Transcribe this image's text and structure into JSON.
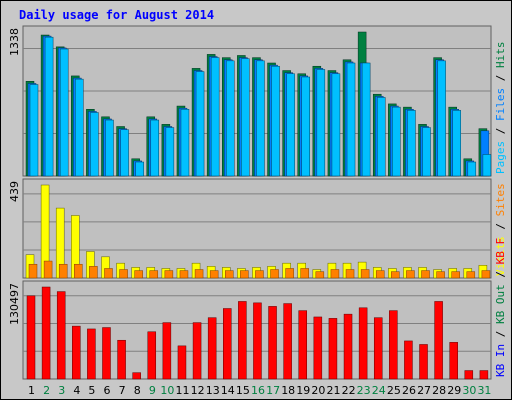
{
  "title": "Daily usage for August 2014",
  "colors": {
    "title": "#0000ff",
    "hits": "#008040",
    "files": "#0080ff",
    "files_light": "#00c0ff",
    "pages": "#00c0ff",
    "visits": "#ffff00",
    "sites": "#ff8000",
    "kbin": "#ff0000",
    "kbout": "#008040",
    "weekend_label": "#008040",
    "weekday_label": "#000000"
  },
  "chart_data": {
    "type": "bar",
    "days": [
      "1",
      "2",
      "3",
      "4",
      "5",
      "6",
      "7",
      "8",
      "9",
      "10",
      "11",
      "12",
      "13",
      "14",
      "15",
      "16",
      "17",
      "18",
      "19",
      "20",
      "21",
      "22",
      "23",
      "24",
      "25",
      "26",
      "27",
      "28",
      "29",
      "30",
      "31"
    ],
    "weekend_days": [
      "2",
      "3",
      "9",
      "10",
      "16",
      "17",
      "23",
      "24",
      "30",
      "31"
    ],
    "panels": [
      {
        "id": "top",
        "ymax_label": "1338",
        "ymax": 1338,
        "legend": [
          {
            "text": "Pages",
            "color": "#00c0ff"
          },
          {
            "text": " / ",
            "color": "#000000"
          },
          {
            "text": "Files",
            "color": "#0080ff"
          },
          {
            "text": " / ",
            "color": "#000000"
          },
          {
            "text": "Hits",
            "color": "#008040"
          }
        ],
        "series": [
          {
            "name": "Hits",
            "values": [
              880,
              1310,
              1200,
              930,
              620,
              550,
              460,
              160,
              550,
              480,
              650,
              1000,
              1130,
              1100,
              1120,
              1100,
              1050,
              980,
              950,
              1020,
              980,
              1080,
              1338,
              760,
              670,
              640,
              480,
              1100,
              640,
              160,
              440
            ]
          },
          {
            "name": "Files",
            "values": [
              860,
              1300,
              1190,
              910,
              600,
              530,
              440,
              140,
              530,
              460,
              630,
              980,
              1110,
              1080,
              1100,
              1080,
              1030,
              960,
              930,
              1000,
              960,
              1060,
              1050,
              740,
              650,
              620,
              460,
              1080,
              620,
              140,
              420
            ]
          },
          {
            "name": "Pages",
            "values": [
              850,
              1290,
              1180,
              900,
              590,
              520,
              430,
              130,
              520,
              450,
              620,
              970,
              1100,
              1070,
              1090,
              1070,
              1020,
              950,
              920,
              990,
              950,
              1050,
              1050,
              730,
              640,
              610,
              450,
              1070,
              610,
              130,
              200
            ]
          }
        ]
      },
      {
        "id": "middle",
        "ymax_label": "439",
        "ymax": 439,
        "legend": [
          {
            "text": "Visits",
            "color": "#ffff00"
          },
          {
            "text": " / ",
            "color": "#000000"
          },
          {
            "text": "Sites",
            "color": "#ff8000"
          }
        ],
        "series": [
          {
            "name": "Visits",
            "values": [
              110,
              439,
              330,
              295,
              125,
              100,
              70,
              50,
              50,
              45,
              45,
              70,
              55,
              50,
              45,
              50,
              55,
              70,
              70,
              40,
              70,
              70,
              75,
              50,
              45,
              50,
              50,
              40,
              45,
              45,
              60
            ]
          },
          {
            "name": "Sites",
            "values": [
              65,
              80,
              65,
              65,
              55,
              45,
              40,
              35,
              35,
              35,
              35,
              40,
              35,
              35,
              35,
              35,
              40,
              45,
              45,
              30,
              40,
              40,
              40,
              35,
              30,
              35,
              35,
              30,
              30,
              30,
              35
            ]
          }
        ]
      },
      {
        "id": "bottom",
        "ymax_label": "130497",
        "ymax": 130497,
        "legend": [
          {
            "text": "KB In",
            "color": "#0000ff"
          },
          {
            "text": " / ",
            "color": "#000000"
          },
          {
            "text": "KB Out",
            "color": "#008040"
          },
          {
            "text": " / ",
            "color": "#000000"
          },
          {
            "text": "KB F",
            "color": "#ff0000"
          }
        ],
        "series": [
          {
            "name": "KB F",
            "values": [
              118000,
              130497,
              124000,
              75000,
              71000,
              73000,
              55000,
              9000,
              67000,
              80000,
              47000,
              80000,
              87000,
              100000,
              110000,
              108000,
              103000,
              107000,
              97000,
              88000,
              86000,
              92000,
              101000,
              87000,
              97000,
              54000,
              49000,
              110000,
              52000,
              12000,
              12000
            ]
          }
        ]
      }
    ]
  }
}
